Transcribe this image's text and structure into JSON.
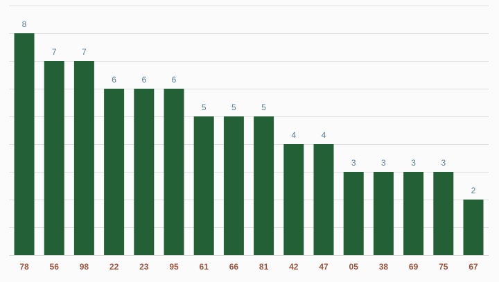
{
  "chart_data": {
    "type": "bar",
    "categories": [
      "78",
      "56",
      "98",
      "22",
      "23",
      "95",
      "61",
      "66",
      "81",
      "42",
      "47",
      "05",
      "38",
      "69",
      "75",
      "67"
    ],
    "values": [
      8,
      7,
      7,
      6,
      6,
      6,
      5,
      5,
      5,
      4,
      4,
      3,
      3,
      3,
      3,
      2
    ],
    "title": "",
    "xlabel": "",
    "ylabel": "",
    "ylim": [
      0,
      9
    ],
    "grid": true,
    "legend": "none",
    "colors": {
      "bar": "#246035",
      "data_label": "#5a7f95",
      "tick_label": "#a0523c",
      "grid": "#dedede",
      "background": "#fbfbfb"
    }
  }
}
